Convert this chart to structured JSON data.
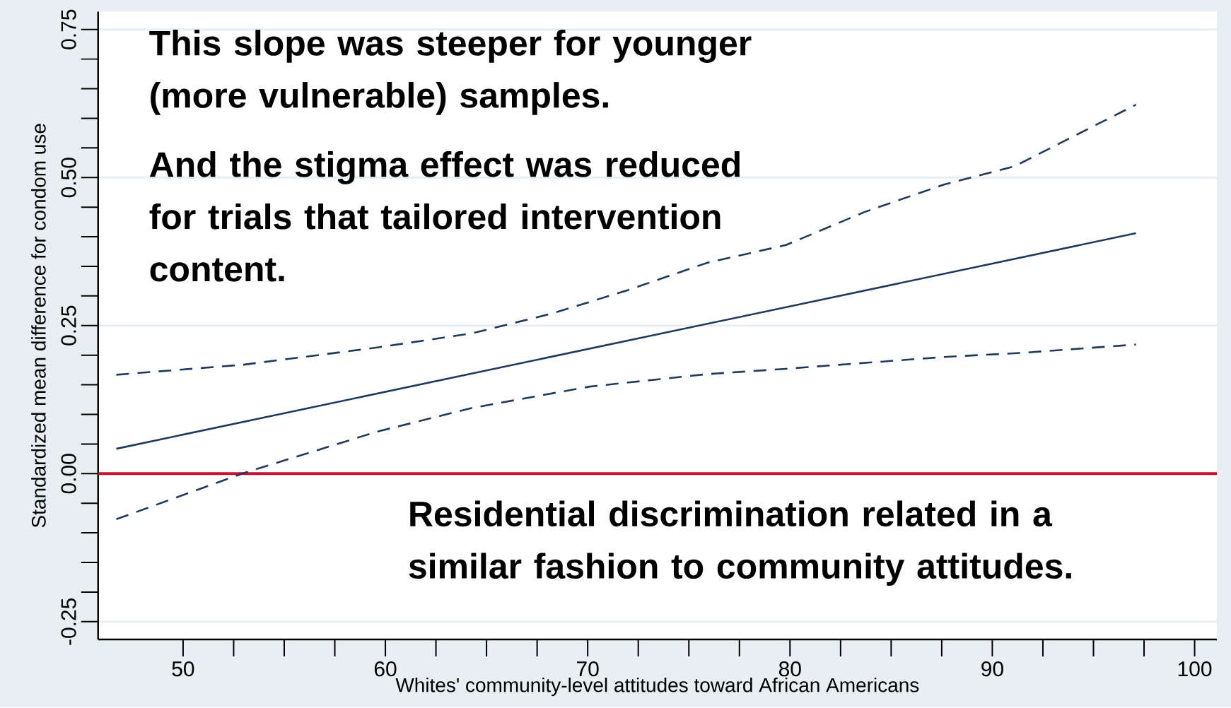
{
  "chart_data": {
    "type": "line",
    "xlabel": "Whites' community-level attitudes toward African Americans",
    "ylabel": "Standardized mean difference for condom use",
    "xlim": [
      45.8,
      101.1
    ],
    "ylim": [
      -0.28,
      0.78
    ],
    "xticks": [
      50,
      60,
      70,
      80,
      90,
      100
    ],
    "yticks": [
      {
        "value": -0.25,
        "label": "-0.25"
      },
      {
        "value": 0,
        "label": "0.00"
      },
      {
        "value": 0.25,
        "label": "0.25"
      },
      {
        "value": 0.5,
        "label": "0.50"
      },
      {
        "value": 0.75,
        "label": "0.75"
      }
    ],
    "grid": "y",
    "marker": "none",
    "series": [
      {
        "color": "#1e3a5c",
        "line_style": "dashed",
        "x": [
          46.7,
          53.0,
          59.6,
          64.3,
          68.2,
          72.0,
          75.9,
          79.8,
          83.7,
          87.6,
          91.1,
          97.1
        ],
        "values": [
          0.167,
          0.184,
          0.213,
          0.237,
          0.27,
          0.31,
          0.356,
          0.386,
          0.442,
          0.488,
          0.519,
          0.623
        ]
      },
      {
        "color": "#1e3a5c",
        "line_style": "solid",
        "x": [
          46.7,
          97.1
        ],
        "values": [
          0.042,
          0.406
        ]
      },
      {
        "color": "#1e3a5c",
        "line_style": "dashed",
        "x": [
          46.7,
          53.0,
          59.6,
          64.3,
          70.1,
          75.9,
          79.8,
          87.6,
          91.5,
          97.1
        ],
        "values": [
          -0.077,
          0.001,
          0.071,
          0.111,
          0.147,
          0.168,
          0.177,
          0.197,
          0.204,
          0.218
        ]
      }
    ],
    "ref_lines": [
      {
        "axis": "y",
        "value": 0,
        "color": "#c8102e"
      }
    ],
    "annotations": [
      "This slope was steeper for younger (more vulnerable) samples.",
      "And the stigma effect was reduced for trials that tailored intervention content.",
      "Residential discrimination related in a similar fashion to community attitudes."
    ]
  }
}
